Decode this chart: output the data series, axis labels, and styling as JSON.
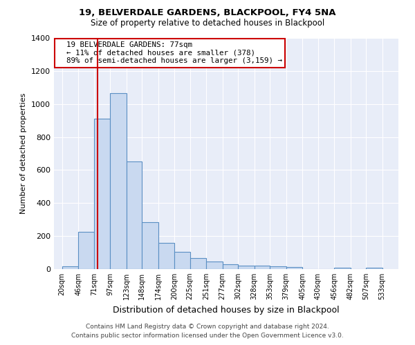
{
  "title1": "19, BELVERDALE GARDENS, BLACKPOOL, FY4 5NA",
  "title2": "Size of property relative to detached houses in Blackpool",
  "xlabel": "Distribution of detached houses by size in Blackpool",
  "ylabel": "Number of detached properties",
  "footer1": "Contains HM Land Registry data © Crown copyright and database right 2024.",
  "footer2": "Contains public sector information licensed under the Open Government Licence v3.0.",
  "annotation_line1": "19 BELVERDALE GARDENS: 77sqm",
  "annotation_line2": "← 11% of detached houses are smaller (378)",
  "annotation_line3": "89% of semi-detached houses are larger (3,159) →",
  "bar_left_edges": [
    20,
    46,
    71,
    97,
    123,
    148,
    174,
    200,
    225,
    251,
    277,
    302,
    328,
    353,
    379,
    405,
    430,
    456,
    482,
    507
  ],
  "bar_widths": [
    26,
    25,
    26,
    26,
    25,
    26,
    26,
    25,
    26,
    26,
    25,
    26,
    25,
    26,
    26,
    25,
    26,
    26,
    25,
    26
  ],
  "bar_heights": [
    15,
    225,
    910,
    1065,
    650,
    285,
    158,
    105,
    68,
    48,
    30,
    22,
    22,
    15,
    12,
    0,
    0,
    10,
    0,
    10
  ],
  "xtick_labels": [
    "20sqm",
    "46sqm",
    "71sqm",
    "97sqm",
    "123sqm",
    "148sqm",
    "174sqm",
    "200sqm",
    "225sqm",
    "251sqm",
    "277sqm",
    "302sqm",
    "328sqm",
    "353sqm",
    "379sqm",
    "405sqm",
    "430sqm",
    "456sqm",
    "482sqm",
    "507sqm",
    "533sqm"
  ],
  "bar_color": "#c9d9f0",
  "bar_edge_color": "#5a8fc3",
  "vline_x": 77,
  "vline_color": "#cc0000",
  "background_color": "#e8edf8",
  "ylim": [
    0,
    1400
  ],
  "yticks": [
    0,
    200,
    400,
    600,
    800,
    1000,
    1200,
    1400
  ],
  "annotation_box_color": "white",
  "annotation_box_edge_color": "#cc0000",
  "xlim_left": 7,
  "xlim_right": 559
}
